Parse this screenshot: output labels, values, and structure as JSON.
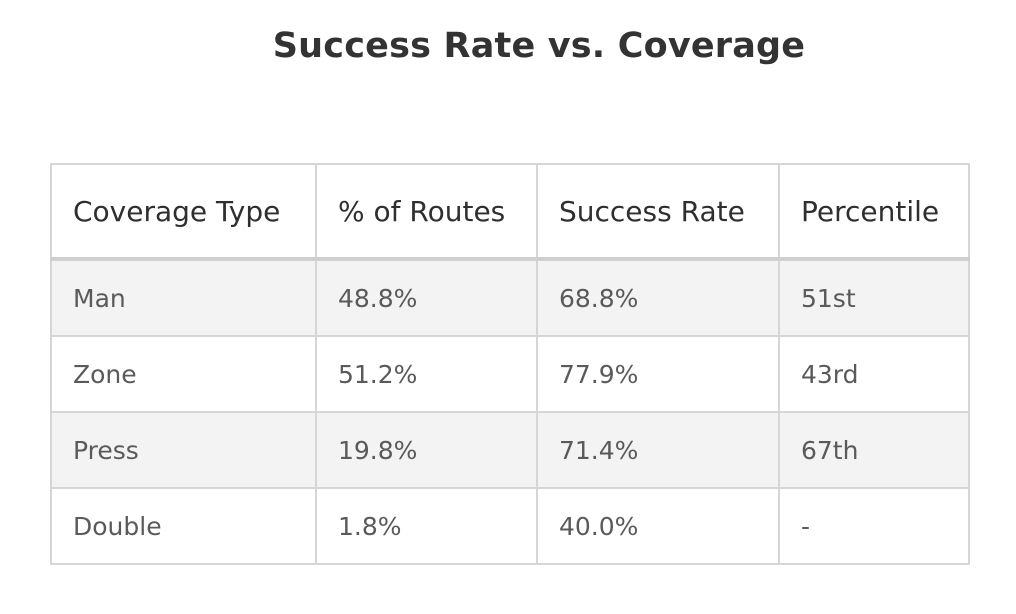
{
  "chart_data": {
    "type": "table",
    "title": "Success Rate vs. Coverage",
    "columns": [
      "Coverage Type",
      "% of Routes",
      "Success Rate",
      "Percentile"
    ],
    "rows": [
      [
        "Man",
        "48.8%",
        "68.8%",
        "51st"
      ],
      [
        "Zone",
        "51.2%",
        "77.9%",
        "43rd"
      ],
      [
        "Press",
        "19.8%",
        "71.4%",
        "67th"
      ],
      [
        "Double",
        "1.8%",
        "40.0%",
        "-"
      ]
    ]
  }
}
